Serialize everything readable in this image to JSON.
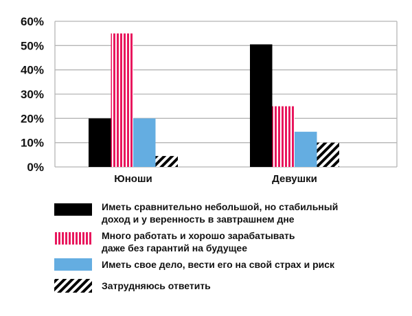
{
  "chart_data": {
    "type": "bar",
    "categories": [
      "Юноши",
      "Девушки"
    ],
    "ylim": [
      0,
      60
    ],
    "yticks": [
      "0%",
      "10%",
      "20%",
      "30%",
      "40%",
      "50%",
      "60%"
    ],
    "grid": true,
    "legend_position": "bottom",
    "series": [
      {
        "key": "stable",
        "name": "Иметь сравнительно небольшой, но стабильный доход и у веренность в завтрашнем дне",
        "legend_lines": [
          "Иметь сравнительно небольшой, но стабильный",
          "доход и у веренность в завтрашнем дне"
        ],
        "values": [
          20,
          50.5
        ],
        "pattern": "solid",
        "color": "#000000"
      },
      {
        "key": "earn",
        "name": "Много работать и хорошо зарабатывать даже без гарантий на будущее",
        "legend_lines": [
          "Много работать и хорошо зарабатывать",
          "даже без гарантий  на будущее"
        ],
        "values": [
          55,
          25
        ],
        "pattern": "vertical-stripes",
        "color": "#e8175d"
      },
      {
        "key": "business",
        "name": "Иметь свое дело, вести его на свой страх и риск",
        "legend_lines": [
          "Иметь свое дело, вести его на свой страх и риск"
        ],
        "values": [
          20,
          14.5
        ],
        "pattern": "solid",
        "color": "#64ade1"
      },
      {
        "key": "unsure",
        "name": "Затрудняюсь ответить",
        "legend_lines": [
          "Затрудняюсь ответить"
        ],
        "values": [
          4.5,
          10
        ],
        "pattern": "diagonal-stripes",
        "color": "#000000"
      }
    ]
  }
}
